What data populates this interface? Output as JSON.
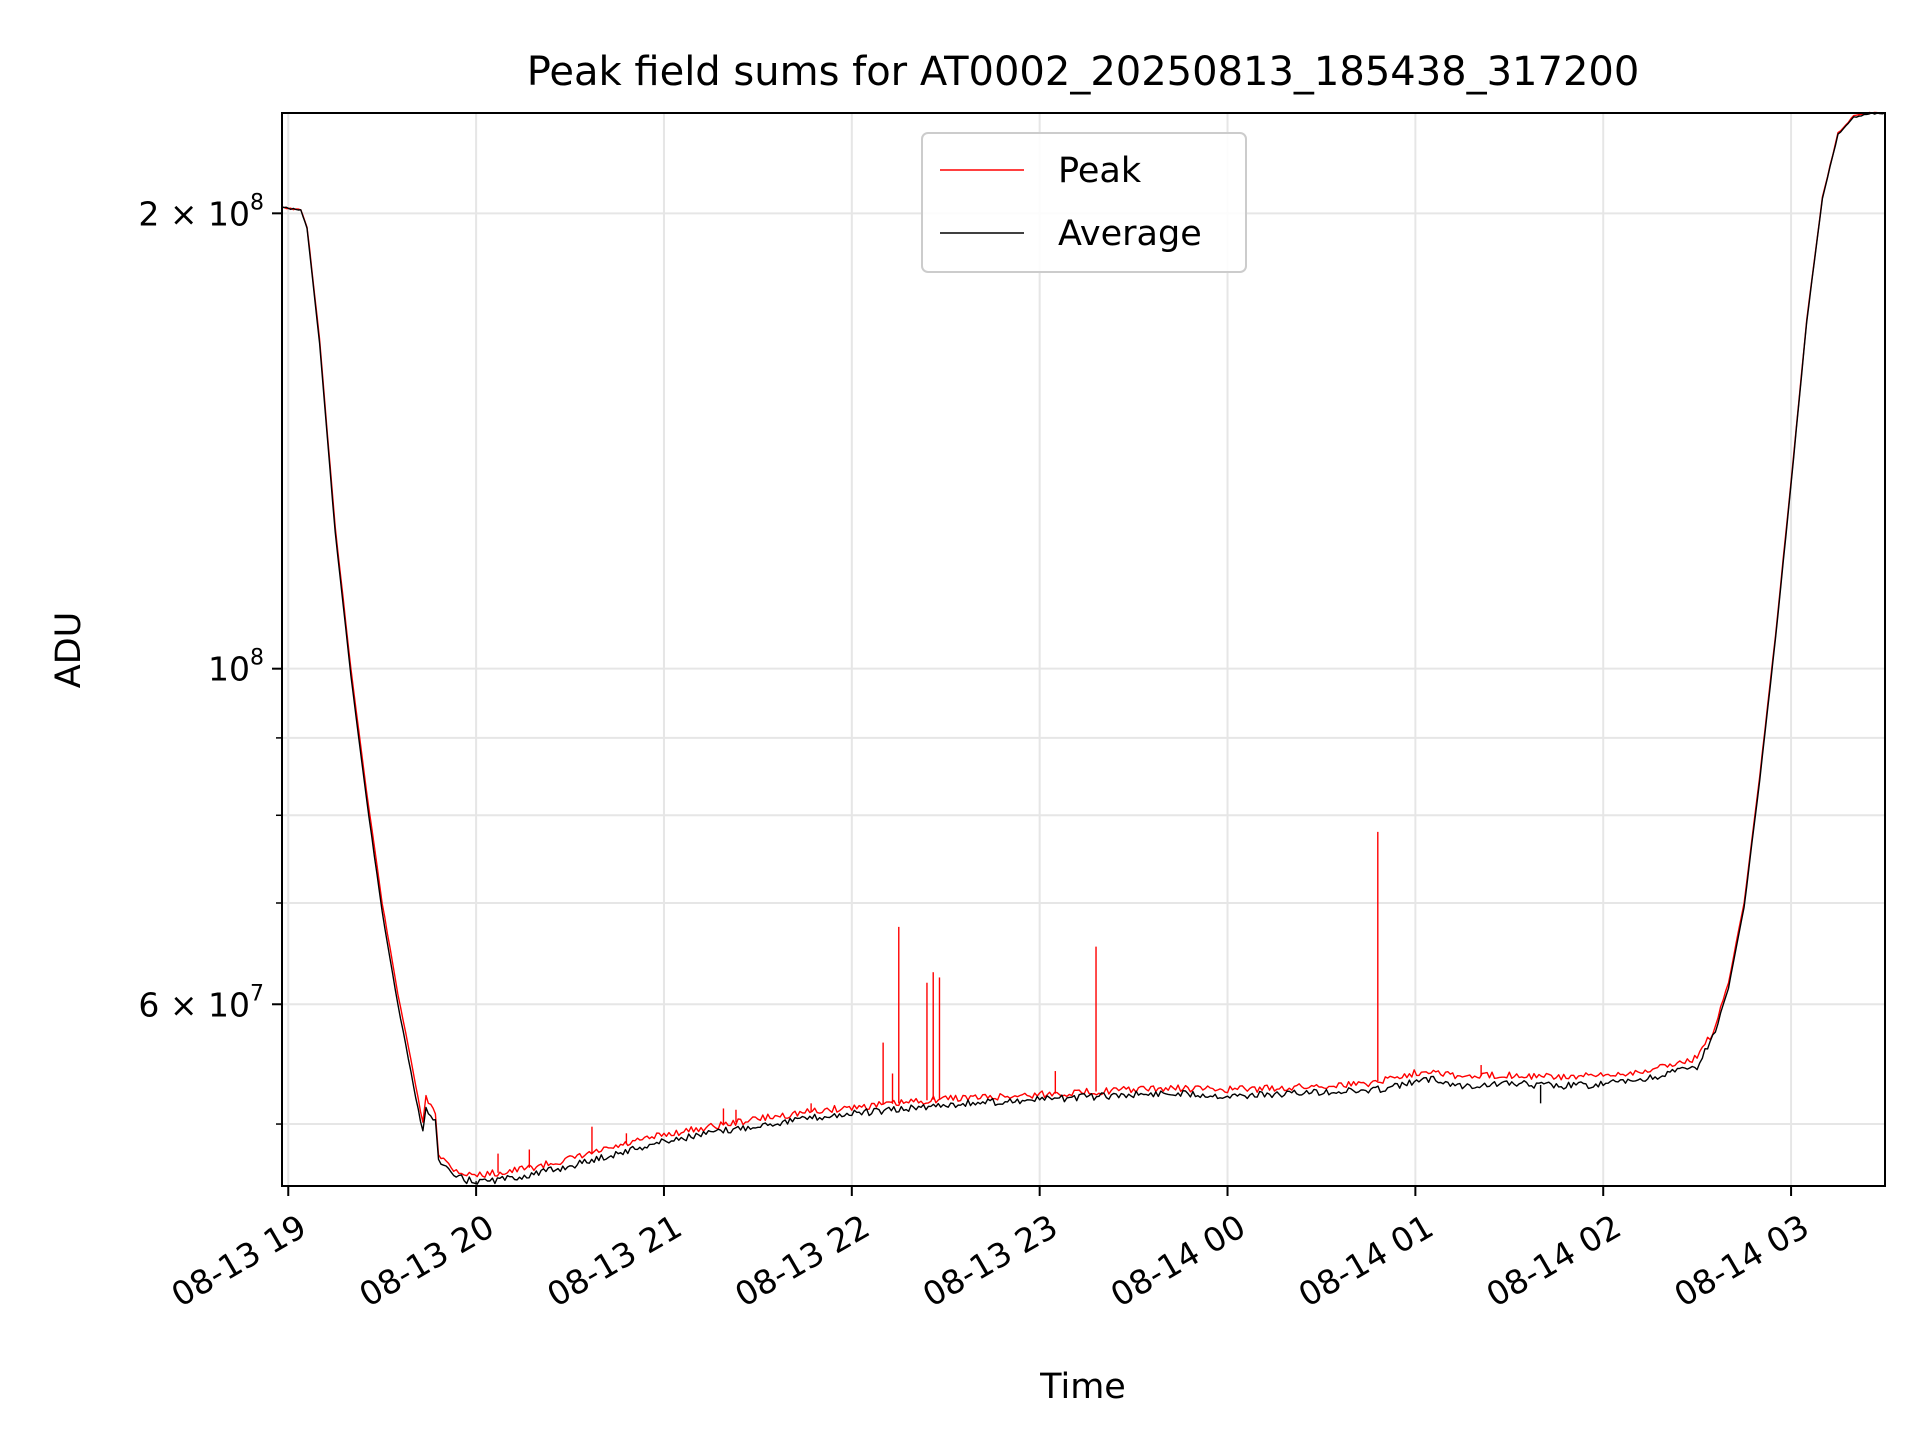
{
  "chart_data": {
    "type": "line",
    "title": "Peak field sums for AT0002_20250813_185438_317200",
    "xlabel": "Time",
    "ylabel": "ADU",
    "yscale": "log",
    "grid": true,
    "legend_placement": "upper-center",
    "xlim": [
      "2025-08-13 18:58",
      "2025-08-14 03:30"
    ],
    "ylim": [
      45500000,
      233000000
    ],
    "x_ticks": [
      {
        "t": "2025-08-13 19:00",
        "label": "08-13 19"
      },
      {
        "t": "2025-08-13 20:00",
        "label": "08-13 20"
      },
      {
        "t": "2025-08-13 21:00",
        "label": "08-13 21"
      },
      {
        "t": "2025-08-13 22:00",
        "label": "08-13 22"
      },
      {
        "t": "2025-08-13 23:00",
        "label": "08-13 23"
      },
      {
        "t": "2025-08-14 00:00",
        "label": "08-14 00"
      },
      {
        "t": "2025-08-14 01:00",
        "label": "08-14 01"
      },
      {
        "t": "2025-08-14 02:00",
        "label": "08-14 02"
      },
      {
        "t": "2025-08-14 03:00",
        "label": "08-14 03"
      }
    ],
    "y_ticks": [
      {
        "v": 200000000,
        "base": "2 × 10",
        "exp": "8"
      },
      {
        "v": 100000000,
        "base": "10",
        "exp": "8"
      },
      {
        "v": 60000000,
        "base": "6 × 10",
        "exp": "7"
      }
    ],
    "y_minor_ticks": [
      50000000,
      70000000,
      80000000,
      90000000
    ],
    "series": [
      {
        "name": "Peak",
        "color": "#ff0000",
        "points": [
          [
            "2025-08-13 18:58",
            202000000
          ],
          [
            "2025-08-13 19:00",
            201500000
          ],
          [
            "2025-08-13 19:04",
            201000000
          ],
          [
            "2025-08-13 19:06",
            196000000
          ],
          [
            "2025-08-13 19:10",
            165000000
          ],
          [
            "2025-08-13 19:15",
            124000000
          ],
          [
            "2025-08-13 19:20",
            100000000
          ],
          [
            "2025-08-13 19:25",
            83000000
          ],
          [
            "2025-08-13 19:30",
            70000000
          ],
          [
            "2025-08-13 19:35",
            61000000
          ],
          [
            "2025-08-13 19:40",
            54000000
          ],
          [
            "2025-08-13 19:43",
            50000000
          ],
          [
            "2025-08-13 19:44",
            52000000
          ],
          [
            "2025-08-13 19:47",
            51000000
          ],
          [
            "2025-08-13 19:48",
            47800000
          ],
          [
            "2025-08-13 19:52",
            46800000
          ],
          [
            "2025-08-13 19:57",
            46300000
          ],
          [
            "2025-08-13 20:02",
            46300000
          ],
          [
            "2025-08-13 20:10",
            46500000
          ],
          [
            "2025-08-13 20:20",
            46900000
          ],
          [
            "2025-08-13 20:30",
            47400000
          ],
          [
            "2025-08-13 20:40",
            48000000
          ],
          [
            "2025-08-13 20:50",
            48600000
          ],
          [
            "2025-08-13 21:00",
            49200000
          ],
          [
            "2025-08-13 21:15",
            49800000
          ],
          [
            "2025-08-13 21:30",
            50400000
          ],
          [
            "2025-08-13 21:45",
            50900000
          ],
          [
            "2025-08-13 22:00",
            51300000
          ],
          [
            "2025-08-13 22:15",
            51600000
          ],
          [
            "2025-08-13 22:30",
            52000000
          ],
          [
            "2025-08-13 22:45",
            52100000
          ],
          [
            "2025-08-13 23:00",
            52300000
          ],
          [
            "2025-08-13 23:15",
            52500000
          ],
          [
            "2025-08-13 23:30",
            52700000
          ],
          [
            "2025-08-13 23:45",
            52800000
          ],
          [
            "2025-08-14 00:00",
            52700000
          ],
          [
            "2025-08-14 00:15",
            52800000
          ],
          [
            "2025-08-14 00:30",
            53000000
          ],
          [
            "2025-08-14 00:45",
            53200000
          ],
          [
            "2025-08-14 00:55",
            53800000
          ],
          [
            "2025-08-14 01:05",
            54300000
          ],
          [
            "2025-08-14 01:15",
            53700000
          ],
          [
            "2025-08-14 01:30",
            53900000
          ],
          [
            "2025-08-14 01:45",
            53700000
          ],
          [
            "2025-08-14 02:00",
            53800000
          ],
          [
            "2025-08-14 02:15",
            54300000
          ],
          [
            "2025-08-14 02:30",
            55300000
          ],
          [
            "2025-08-14 02:35",
            57500000
          ],
          [
            "2025-08-14 02:40",
            62000000
          ],
          [
            "2025-08-14 02:45",
            70000000
          ],
          [
            "2025-08-14 02:50",
            85000000
          ],
          [
            "2025-08-14 02:55",
            105000000
          ],
          [
            "2025-08-14 03:00",
            133000000
          ],
          [
            "2025-08-14 03:05",
            170000000
          ],
          [
            "2025-08-14 03:10",
            205000000
          ],
          [
            "2025-08-14 03:15",
            226000000
          ],
          [
            "2025-08-14 03:20",
            232000000
          ],
          [
            "2025-08-14 03:25",
            233000000
          ],
          [
            "2025-08-14 03:30",
            233000000
          ]
        ],
        "spikes": [
          [
            "2025-08-13 20:07",
            47800000
          ],
          [
            "2025-08-13 20:17",
            48100000
          ],
          [
            "2025-08-13 20:37",
            49800000
          ],
          [
            "2025-08-13 20:48",
            49300000
          ],
          [
            "2025-08-13 21:19",
            51200000
          ],
          [
            "2025-08-13 21:23",
            51100000
          ],
          [
            "2025-08-13 21:47",
            51600000
          ],
          [
            "2025-08-13 22:10",
            56600000
          ],
          [
            "2025-08-13 22:13",
            54000000
          ],
          [
            "2025-08-13 22:15",
            67500000
          ],
          [
            "2025-08-13 22:24",
            62000000
          ],
          [
            "2025-08-13 22:26",
            63000000
          ],
          [
            "2025-08-13 22:28",
            62500000
          ],
          [
            "2025-08-13 23:05",
            54200000
          ],
          [
            "2025-08-13 23:18",
            65500000
          ],
          [
            "2025-08-14 00:48",
            78000000
          ],
          [
            "2025-08-14 01:21",
            54700000
          ]
        ]
      },
      {
        "name": "Average",
        "color": "#000000",
        "points": [
          [
            "2025-08-13 18:58",
            202000000
          ],
          [
            "2025-08-13 19:00",
            201500000
          ],
          [
            "2025-08-13 19:04",
            201000000
          ],
          [
            "2025-08-13 19:06",
            195500000
          ],
          [
            "2025-08-13 19:10",
            164000000
          ],
          [
            "2025-08-13 19:15",
            123000000
          ],
          [
            "2025-08-13 19:20",
            99000000
          ],
          [
            "2025-08-13 19:25",
            82000000
          ],
          [
            "2025-08-13 19:30",
            69000000
          ],
          [
            "2025-08-13 19:35",
            60000000
          ],
          [
            "2025-08-13 19:40",
            53000000
          ],
          [
            "2025-08-13 19:43",
            49300000
          ],
          [
            "2025-08-13 19:44",
            51300000
          ],
          [
            "2025-08-13 19:47",
            50300000
          ],
          [
            "2025-08-13 19:48",
            47300000
          ],
          [
            "2025-08-13 19:52",
            46300000
          ],
          [
            "2025-08-13 19:57",
            45900000
          ],
          [
            "2025-08-13 20:02",
            45800000
          ],
          [
            "2025-08-13 20:10",
            46000000
          ],
          [
            "2025-08-13 20:20",
            46400000
          ],
          [
            "2025-08-13 20:30",
            46900000
          ],
          [
            "2025-08-13 20:40",
            47500000
          ],
          [
            "2025-08-13 20:50",
            48100000
          ],
          [
            "2025-08-13 21:00",
            48700000
          ],
          [
            "2025-08-13 21:15",
            49300000
          ],
          [
            "2025-08-13 21:30",
            49900000
          ],
          [
            "2025-08-13 21:45",
            50400000
          ],
          [
            "2025-08-13 22:00",
            50800000
          ],
          [
            "2025-08-13 22:15",
            51100000
          ],
          [
            "2025-08-13 22:30",
            51500000
          ],
          [
            "2025-08-13 22:45",
            51700000
          ],
          [
            "2025-08-13 23:00",
            51900000
          ],
          [
            "2025-08-13 23:15",
            52100000
          ],
          [
            "2025-08-13 23:30",
            52300000
          ],
          [
            "2025-08-13 23:45",
            52400000
          ],
          [
            "2025-08-14 00:00",
            52200000
          ],
          [
            "2025-08-14 00:15",
            52300000
          ],
          [
            "2025-08-14 00:30",
            52500000
          ],
          [
            "2025-08-14 00:45",
            52600000
          ],
          [
            "2025-08-14 00:55",
            53000000
          ],
          [
            "2025-08-14 01:05",
            53600000
          ],
          [
            "2025-08-14 01:15",
            53000000
          ],
          [
            "2025-08-14 01:30",
            53200000
          ],
          [
            "2025-08-14 01:45",
            53000000
          ],
          [
            "2025-08-14 02:00",
            53100000
          ],
          [
            "2025-08-14 02:15",
            53600000
          ],
          [
            "2025-08-14 02:30",
            54600000
          ],
          [
            "2025-08-14 02:35",
            57000000
          ],
          [
            "2025-08-14 02:40",
            61500000
          ],
          [
            "2025-08-14 02:45",
            69500000
          ],
          [
            "2025-08-14 02:50",
            84500000
          ],
          [
            "2025-08-14 02:55",
            104500000
          ],
          [
            "2025-08-14 03:00",
            132500000
          ],
          [
            "2025-08-14 03:05",
            169500000
          ],
          [
            "2025-08-14 03:10",
            204500000
          ],
          [
            "2025-08-14 03:15",
            225500000
          ],
          [
            "2025-08-14 03:20",
            231500000
          ],
          [
            "2025-08-14 03:25",
            232800000
          ],
          [
            "2025-08-14 03:30",
            233000000
          ]
        ],
        "dips": [
          [
            "2025-08-13 20:00",
            45600000
          ],
          [
            "2025-08-14 01:40",
            51600000
          ]
        ]
      }
    ]
  }
}
